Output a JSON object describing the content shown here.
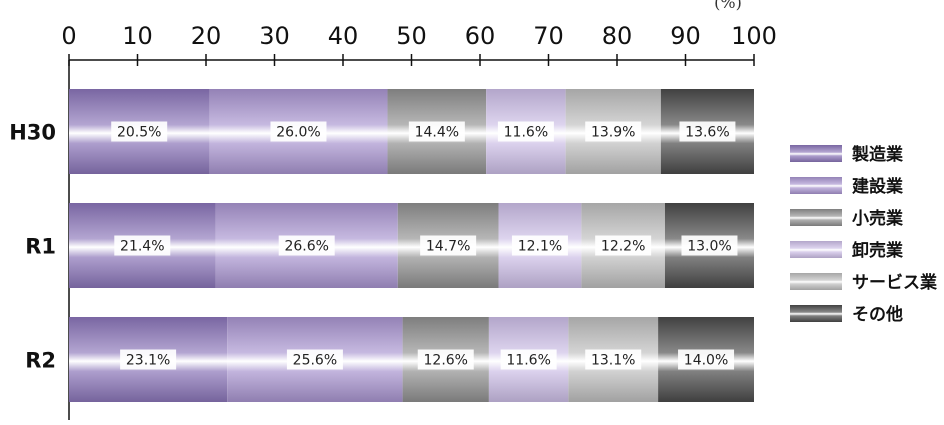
{
  "chart_data": {
    "type": "bar",
    "orientation": "horizontal",
    "stacked": true,
    "unit_label": "(%)",
    "xlim": [
      0,
      100
    ],
    "xticks": [
      "0",
      "10",
      "20",
      "30",
      "40",
      "50",
      "60",
      "70",
      "80",
      "90",
      "100"
    ],
    "categories": [
      "H30",
      "R1",
      "R2"
    ],
    "series": [
      {
        "name": "製造業",
        "values": [
          20.5,
          21.4,
          23.1
        ],
        "labels": [
          "20.5%",
          "21.4%",
          "23.1%"
        ],
        "color": "#8a74b8"
      },
      {
        "name": "建設業",
        "values": [
          26.0,
          26.6,
          25.6
        ],
        "labels": [
          "26.0%",
          "26.6%",
          "25.6%"
        ],
        "color": "#a894cf"
      },
      {
        "name": "小売業",
        "values": [
          14.4,
          14.7,
          12.6
        ],
        "labels": [
          "14.4%",
          "14.7%",
          "12.6%"
        ],
        "color": "#8f8f8f"
      },
      {
        "name": "卸売業",
        "values": [
          11.6,
          12.1,
          11.6
        ],
        "labels": [
          "11.6%",
          "12.1%",
          "11.6%"
        ],
        "color": "#cbbde5"
      },
      {
        "name": "サービス業",
        "values": [
          13.9,
          12.2,
          13.1
        ],
        "labels": [
          "13.9%",
          "12.2%",
          "13.1%"
        ],
        "color": "#bdbdbd"
      },
      {
        "name": "その他",
        "values": [
          13.6,
          13.0,
          14.0
        ],
        "labels": [
          "13.6%",
          "13.0%",
          "14.0%"
        ],
        "color": "#4a4a4a"
      }
    ],
    "legend_position": "right",
    "grid": false
  }
}
